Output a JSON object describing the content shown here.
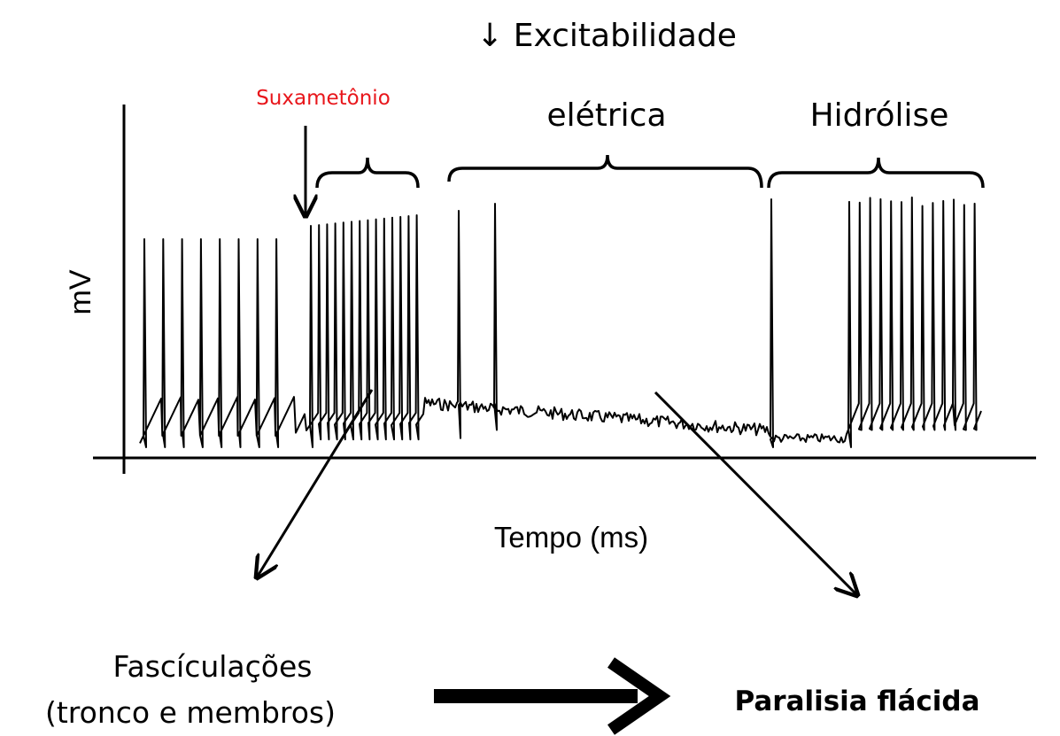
{
  "header": {
    "title": "↓ Excitabilidade"
  },
  "labels": {
    "drug": "Suxametônio",
    "phase2": "elétrica",
    "phase3": "Hidrólise",
    "y_axis": "mV",
    "x_axis": "Tempo (ms)"
  },
  "outcomes": {
    "first_line1": "Fascículações",
    "first_line2": "(tronco e membros)",
    "second": "Paralisia flácida"
  }
}
